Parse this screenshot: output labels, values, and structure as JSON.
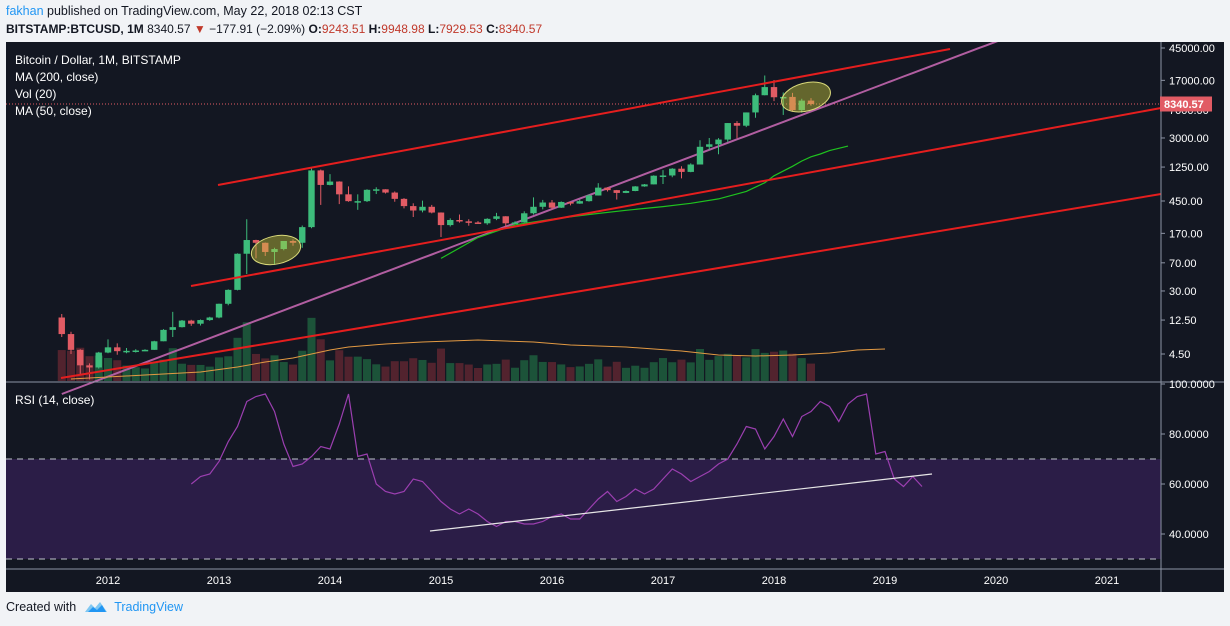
{
  "header": {
    "user": "fakhan",
    "published_text": " published on TradingView.com, May 22, 2018 02:13 CST",
    "symbol": "BITSTAMP:BTCUSD, 1M",
    "last_price": "8340.57",
    "change_arrow": "▼",
    "change": "−177.91 (−2.09%)",
    "o_label": "O:",
    "o_value": "9243.51",
    "h_label": "H:",
    "h_value": "9948.98",
    "l_label": "L:",
    "l_value": "7929.53",
    "c_label": "C:",
    "c_value": "8340.57"
  },
  "legend": {
    "title": "Bitcoin / Dollar, 1M, BITSTAMP",
    "ma200": "MA (200, close)",
    "vol": "Vol (20)",
    "ma50": "MA (50, close)",
    "rsi": "RSI (14, close)"
  },
  "price_tag": "8340.57",
  "footer": {
    "created_with": "Created with",
    "brand": "TradingView"
  },
  "colors": {
    "background": "#131722",
    "up": "#3dbc7b",
    "down": "#e15b64",
    "trendline": "#e51e1e",
    "ma200": "#b15ea1",
    "ma50": "#1fc21f",
    "vol_ma": "#e39a43",
    "rsi": "#9b3fb0",
    "rsi_band": "#2b1d47"
  },
  "chart_data": [
    {
      "type": "candlestick",
      "title": "Bitcoin / Dollar, 1M, BITSTAMP",
      "y_scale": "log",
      "y_ticks": [
        "45000.00",
        "17000.00",
        "7000.00",
        "3000.00",
        "1250.00",
        "450.00",
        "170.00",
        "70.00",
        "30.00",
        "12.50",
        "4.50"
      ],
      "x_ticks": [
        "2012",
        "2013",
        "2014",
        "2015",
        "2016",
        "2017",
        "2018",
        "2019",
        "2020",
        "2021"
      ],
      "last_price": 8340.57,
      "candles": [
        {
          "t": "2011-08",
          "o": 13.5,
          "h": 15,
          "l": 7.5,
          "c": 8.2
        },
        {
          "t": "2011-09",
          "o": 8.2,
          "h": 8.8,
          "l": 4.5,
          "c": 5.1
        },
        {
          "t": "2011-10",
          "o": 5.1,
          "h": 5.2,
          "l": 2.4,
          "c": 3.2
        },
        {
          "t": "2011-11",
          "o": 3.2,
          "h": 3.4,
          "l": 2.1,
          "c": 3.0
        },
        {
          "t": "2011-12",
          "o": 3.0,
          "h": 4.8,
          "l": 2.9,
          "c": 4.7
        },
        {
          "t": "2012-01",
          "o": 4.7,
          "h": 7.0,
          "l": 4.6,
          "c": 5.5
        },
        {
          "t": "2012-02",
          "o": 5.5,
          "h": 6.2,
          "l": 4.4,
          "c": 4.9
        },
        {
          "t": "2012-03",
          "o": 4.9,
          "h": 5.4,
          "l": 4.6,
          "c": 4.95
        },
        {
          "t": "2012-04",
          "o": 4.95,
          "h": 5.2,
          "l": 4.7,
          "c": 5.0
        },
        {
          "t": "2012-05",
          "o": 5.0,
          "h": 5.2,
          "l": 4.9,
          "c": 5.1
        },
        {
          "t": "2012-06",
          "o": 5.1,
          "h": 6.7,
          "l": 5.1,
          "c": 6.6
        },
        {
          "t": "2012-07",
          "o": 6.6,
          "h": 9.5,
          "l": 6.6,
          "c": 9.3
        },
        {
          "t": "2012-08",
          "o": 9.3,
          "h": 16,
          "l": 7.5,
          "c": 10.1
        },
        {
          "t": "2012-09",
          "o": 10.1,
          "h": 12.5,
          "l": 10.0,
          "c": 12.3
        },
        {
          "t": "2012-10",
          "o": 12.3,
          "h": 12.6,
          "l": 10.5,
          "c": 11.2
        },
        {
          "t": "2012-11",
          "o": 11.2,
          "h": 12.7,
          "l": 10.6,
          "c": 12.5
        },
        {
          "t": "2012-12",
          "o": 12.5,
          "h": 13.8,
          "l": 12.2,
          "c": 13.5
        },
        {
          "t": "2013-01",
          "o": 13.5,
          "h": 20.5,
          "l": 13.2,
          "c": 20.4
        },
        {
          "t": "2013-02",
          "o": 20.4,
          "h": 31.5,
          "l": 19.5,
          "c": 31.0
        },
        {
          "t": "2013-03",
          "o": 31.0,
          "h": 93,
          "l": 30.5,
          "c": 92
        },
        {
          "t": "2013-04",
          "o": 92,
          "h": 260,
          "l": 50,
          "c": 139
        },
        {
          "t": "2013-05",
          "o": 139,
          "h": 140,
          "l": 80,
          "c": 128
        },
        {
          "t": "2013-06",
          "o": 128,
          "h": 129,
          "l": 86,
          "c": 97
        },
        {
          "t": "2013-07",
          "o": 97,
          "h": 110,
          "l": 66,
          "c": 106
        },
        {
          "t": "2013-08",
          "o": 106,
          "h": 135,
          "l": 102,
          "c": 135
        },
        {
          "t": "2013-09",
          "o": 135,
          "h": 142,
          "l": 117,
          "c": 128
        },
        {
          "t": "2013-10",
          "o": 128,
          "h": 215,
          "l": 110,
          "c": 205
        },
        {
          "t": "2013-11",
          "o": 205,
          "h": 1200,
          "l": 198,
          "c": 1130
        },
        {
          "t": "2013-12",
          "o": 1130,
          "h": 1160,
          "l": 400,
          "c": 730
        },
        {
          "t": "2014-01",
          "o": 730,
          "h": 1010,
          "l": 720,
          "c": 808
        },
        {
          "t": "2014-02",
          "o": 808,
          "h": 815,
          "l": 410,
          "c": 550
        },
        {
          "t": "2014-03",
          "o": 550,
          "h": 700,
          "l": 440,
          "c": 448
        },
        {
          "t": "2014-04",
          "o": 448,
          "h": 550,
          "l": 345,
          "c": 448
        },
        {
          "t": "2014-05",
          "o": 448,
          "h": 640,
          "l": 437,
          "c": 630
        },
        {
          "t": "2014-06",
          "o": 630,
          "h": 680,
          "l": 555,
          "c": 640
        },
        {
          "t": "2014-07",
          "o": 640,
          "h": 640,
          "l": 565,
          "c": 580
        },
        {
          "t": "2014-08",
          "o": 580,
          "h": 600,
          "l": 440,
          "c": 480
        },
        {
          "t": "2014-09",
          "o": 480,
          "h": 490,
          "l": 360,
          "c": 386
        },
        {
          "t": "2014-10",
          "o": 386,
          "h": 420,
          "l": 278,
          "c": 338
        },
        {
          "t": "2014-11",
          "o": 338,
          "h": 455,
          "l": 320,
          "c": 378
        },
        {
          "t": "2014-12",
          "o": 378,
          "h": 400,
          "l": 310,
          "c": 318
        },
        {
          "t": "2015-01",
          "o": 318,
          "h": 320,
          "l": 152,
          "c": 218
        },
        {
          "t": "2015-02",
          "o": 218,
          "h": 267,
          "l": 209,
          "c": 254
        },
        {
          "t": "2015-03",
          "o": 254,
          "h": 300,
          "l": 235,
          "c": 244
        },
        {
          "t": "2015-04",
          "o": 244,
          "h": 260,
          "l": 214,
          "c": 236
        },
        {
          "t": "2015-05",
          "o": 236,
          "h": 246,
          "l": 228,
          "c": 230
        },
        {
          "t": "2015-06",
          "o": 230,
          "h": 268,
          "l": 220,
          "c": 263
        },
        {
          "t": "2015-07",
          "o": 263,
          "h": 315,
          "l": 253,
          "c": 284
        },
        {
          "t": "2015-08",
          "o": 284,
          "h": 285,
          "l": 198,
          "c": 230
        },
        {
          "t": "2015-09",
          "o": 230,
          "h": 245,
          "l": 225,
          "c": 236
        },
        {
          "t": "2015-10",
          "o": 236,
          "h": 330,
          "l": 234,
          "c": 311
        },
        {
          "t": "2015-11",
          "o": 311,
          "h": 502,
          "l": 300,
          "c": 378
        },
        {
          "t": "2015-12",
          "o": 378,
          "h": 465,
          "l": 350,
          "c": 430
        },
        {
          "t": "2016-01",
          "o": 430,
          "h": 463,
          "l": 350,
          "c": 368
        },
        {
          "t": "2016-02",
          "o": 368,
          "h": 445,
          "l": 365,
          "c": 437
        },
        {
          "t": "2016-03",
          "o": 437,
          "h": 439,
          "l": 395,
          "c": 416
        },
        {
          "t": "2016-04",
          "o": 416,
          "h": 470,
          "l": 413,
          "c": 448
        },
        {
          "t": "2016-05",
          "o": 448,
          "h": 550,
          "l": 442,
          "c": 531
        },
        {
          "t": "2016-06",
          "o": 531,
          "h": 770,
          "l": 530,
          "c": 673
        },
        {
          "t": "2016-07",
          "o": 673,
          "h": 680,
          "l": 600,
          "c": 624
        },
        {
          "t": "2016-08",
          "o": 624,
          "h": 628,
          "l": 470,
          "c": 574
        },
        {
          "t": "2016-09",
          "o": 574,
          "h": 619,
          "l": 570,
          "c": 608
        },
        {
          "t": "2016-10",
          "o": 608,
          "h": 705,
          "l": 604,
          "c": 698
        },
        {
          "t": "2016-11",
          "o": 698,
          "h": 750,
          "l": 690,
          "c": 742
        },
        {
          "t": "2016-12",
          "o": 742,
          "h": 975,
          "l": 740,
          "c": 963
        },
        {
          "t": "2017-01",
          "o": 963,
          "h": 1140,
          "l": 750,
          "c": 970
        },
        {
          "t": "2017-02",
          "o": 970,
          "h": 1210,
          "l": 920,
          "c": 1190
        },
        {
          "t": "2017-03",
          "o": 1190,
          "h": 1280,
          "l": 890,
          "c": 1080
        },
        {
          "t": "2017-04",
          "o": 1080,
          "h": 1400,
          "l": 1070,
          "c": 1350
        },
        {
          "t": "2017-05",
          "o": 1350,
          "h": 2800,
          "l": 1350,
          "c": 2300
        },
        {
          "t": "2017-06",
          "o": 2300,
          "h": 3000,
          "l": 2100,
          "c": 2480
        },
        {
          "t": "2017-07",
          "o": 2480,
          "h": 2990,
          "l": 1840,
          "c": 2860
        },
        {
          "t": "2017-08",
          "o": 2860,
          "h": 4700,
          "l": 2670,
          "c": 4700
        },
        {
          "t": "2017-09",
          "o": 4700,
          "h": 4980,
          "l": 2970,
          "c": 4340
        },
        {
          "t": "2017-10",
          "o": 4340,
          "h": 6470,
          "l": 4160,
          "c": 6470
        },
        {
          "t": "2017-11",
          "o": 6470,
          "h": 11400,
          "l": 5510,
          "c": 10860
        },
        {
          "t": "2017-12",
          "o": 10860,
          "h": 19660,
          "l": 10830,
          "c": 13880
        },
        {
          "t": "2018-01",
          "o": 13880,
          "h": 17180,
          "l": 9100,
          "c": 10220
        },
        {
          "t": "2018-02",
          "o": 10220,
          "h": 11800,
          "l": 6000,
          "c": 10320
        },
        {
          "t": "2018-03",
          "o": 10320,
          "h": 11670,
          "l": 6600,
          "c": 6930
        },
        {
          "t": "2018-04",
          "o": 6930,
          "h": 9760,
          "l": 6430,
          "c": 9240
        },
        {
          "t": "2018-05",
          "o": 9240,
          "h": 9950,
          "l": 7930,
          "c": 8340
        }
      ]
    },
    {
      "type": "line",
      "title": "RSI (14, close)",
      "ylim": [
        25,
        100
      ],
      "y_ticks": [
        "100.0000",
        "80.0000",
        "60.0000",
        "40.0000"
      ],
      "bands": [
        70,
        30
      ],
      "values": [
        60,
        63,
        64,
        69,
        77,
        83,
        93,
        95,
        96,
        89,
        76,
        67,
        68,
        71,
        75,
        74,
        84,
        96,
        71,
        72,
        60,
        57,
        56,
        57,
        62,
        61,
        57,
        53,
        50,
        48,
        50,
        48,
        45,
        43,
        45,
        45,
        44,
        44,
        45,
        47,
        48,
        46,
        46,
        50,
        54,
        57,
        53,
        55,
        58,
        56,
        58,
        62,
        66,
        64,
        61,
        63,
        65,
        68,
        70,
        76,
        83,
        82,
        74,
        79,
        86,
        79,
        87,
        89,
        93,
        91,
        85,
        92,
        95,
        96,
        72,
        73,
        62,
        59,
        63,
        59
      ]
    }
  ]
}
